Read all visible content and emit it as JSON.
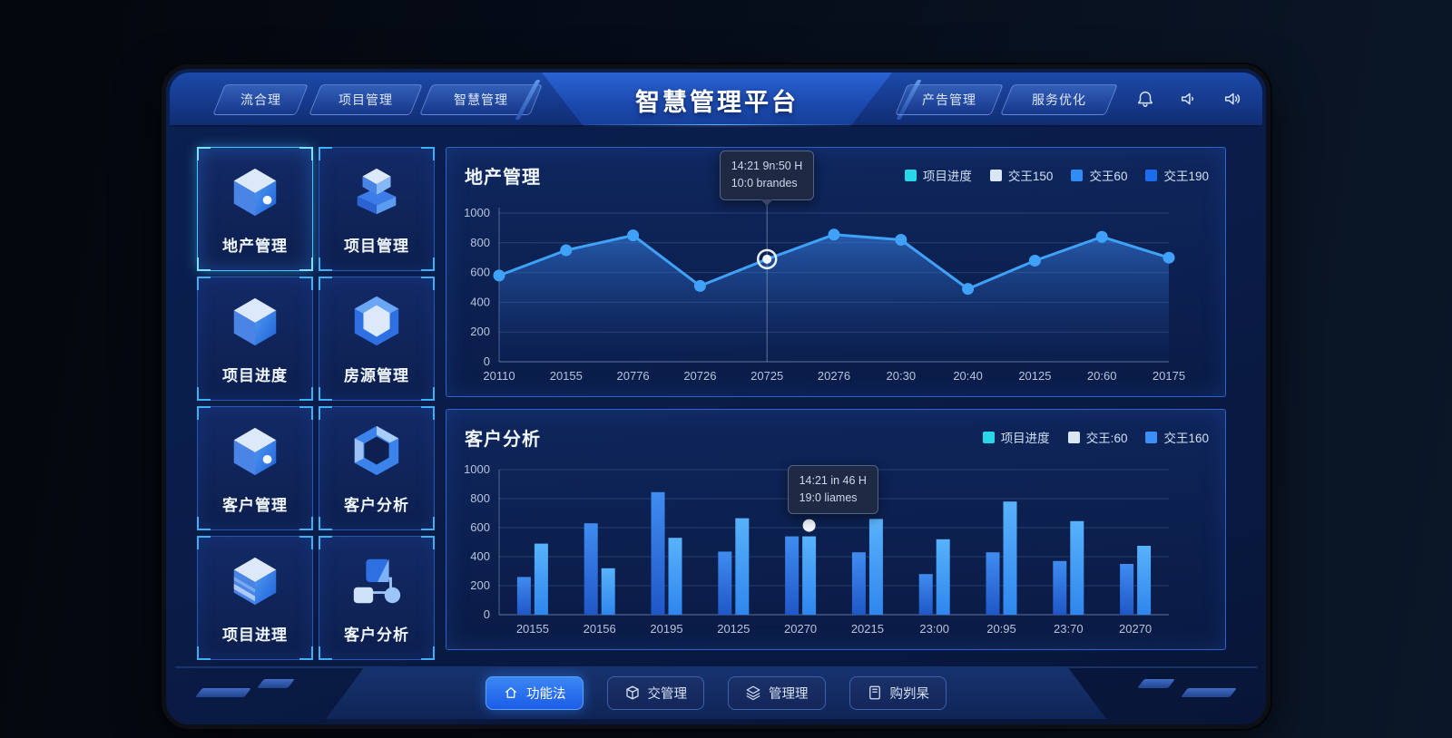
{
  "header": {
    "title": "智慧管理平台",
    "left_tabs": [
      {
        "label": "流合理"
      },
      {
        "label": "项目管理"
      },
      {
        "label": "智慧管理"
      }
    ],
    "right_tabs": [
      {
        "label": "产告管理"
      },
      {
        "label": "服务优化"
      }
    ],
    "icons": [
      "bell-icon",
      "speaker-icon",
      "volume-icon"
    ]
  },
  "sidebar": {
    "tiles": [
      {
        "label": "地产管理",
        "icon": "cube-dot-icon",
        "active": true
      },
      {
        "label": "项目管理",
        "icon": "cube-stack-icon",
        "active": false
      },
      {
        "label": "项目进度",
        "icon": "cube-icon",
        "active": false
      },
      {
        "label": "房源管理",
        "icon": "hexagon-icon",
        "active": false
      },
      {
        "label": "客户管理",
        "icon": "cube-dot-icon",
        "active": false
      },
      {
        "label": "客户分析",
        "icon": "hex-ring-icon",
        "active": false
      },
      {
        "label": "项目进理",
        "icon": "cube-stripes-icon",
        "active": false
      },
      {
        "label": "客户分析",
        "icon": "nodes-icon",
        "active": false
      }
    ]
  },
  "chart_data": [
    {
      "type": "line",
      "title": "地产管理",
      "legend": [
        {
          "label": "项目进度",
          "color": "#29d8e8"
        },
        {
          "label": "交王150",
          "color": "#d9e6f4"
        },
        {
          "label": "交王60",
          "color": "#2f8df5"
        },
        {
          "label": "交王190",
          "color": "#1d6cf0"
        }
      ],
      "x": [
        "20110",
        "20155",
        "20776",
        "20726",
        "20725",
        "20276",
        "20:30",
        "20:40",
        "20125",
        "20:60",
        "20175"
      ],
      "values": [
        580,
        750,
        850,
        510,
        690,
        855,
        820,
        490,
        680,
        840,
        700
      ],
      "ylim": [
        0,
        1000
      ],
      "yticks": [
        0,
        200,
        400,
        600,
        800,
        1000
      ],
      "grid": true,
      "legend_position": "top-right",
      "line_color": "#3fa2f8",
      "highlight_index": 4,
      "tooltip": {
        "line1": "14:21 9n:50 H",
        "line2": "10:0 brandes"
      }
    },
    {
      "type": "bar",
      "title": "客户分析",
      "legend": [
        {
          "label": "项目进度",
          "color": "#29d8e8"
        },
        {
          "label": "交王:60",
          "color": "#d9e6f4"
        },
        {
          "label": "交王160",
          "color": "#3b8ff5"
        }
      ],
      "categories": [
        "20155",
        "20156",
        "20195",
        "20125",
        "20270",
        "20215",
        "23:00",
        "20:95",
        "23:70",
        "20270"
      ],
      "series": [
        {
          "name": "series-1",
          "color": "#2e77e6",
          "values": [
            260,
            630,
            845,
            435,
            540,
            430,
            280,
            430,
            370,
            350
          ]
        },
        {
          "name": "series-2",
          "color": "#46a3f7",
          "values": [
            490,
            320,
            530,
            665,
            540,
            660,
            520,
            780,
            645,
            475
          ]
        }
      ],
      "ylim": [
        0,
        1000
      ],
      "yticks": [
        0,
        200,
        400,
        600,
        800,
        1000
      ],
      "grid": true,
      "legend_position": "top-right",
      "highlight": {
        "cat_index": 4,
        "series_index": 1
      },
      "tooltip": {
        "line1": "14:21 in 46 H",
        "line2": "19:0 liames"
      }
    }
  ],
  "bottom_nav": {
    "buttons": [
      {
        "label": "功能法",
        "icon": "home-icon",
        "active": true
      },
      {
        "label": "交管理",
        "icon": "box-icon",
        "active": false
      },
      {
        "label": "管理理",
        "icon": "layers-icon",
        "active": false
      },
      {
        "label": "购刿杲",
        "icon": "book-icon",
        "active": false
      }
    ]
  }
}
